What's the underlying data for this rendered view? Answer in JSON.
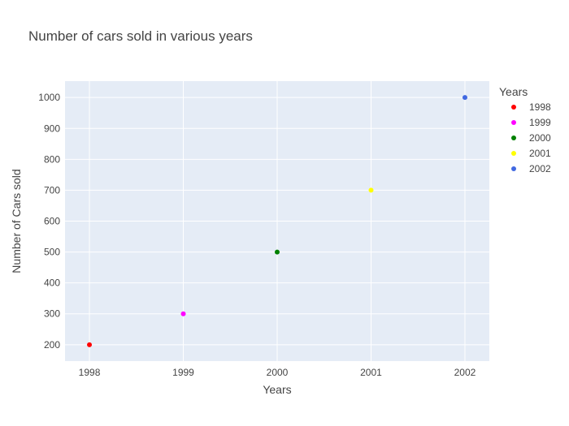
{
  "chart_data": {
    "type": "scatter",
    "title": "Number of cars sold in various years",
    "xlabel": "Years",
    "ylabel": "Number of Cars sold",
    "x_ticks": [
      "1998",
      "1999",
      "2000",
      "2001",
      "2002"
    ],
    "y_ticks": [
      "200",
      "300",
      "400",
      "500",
      "600",
      "700",
      "800",
      "900",
      "1000"
    ],
    "xlim": [
      1997.74,
      2002.26
    ],
    "ylim": [
      147,
      1053
    ],
    "grid": true,
    "legend_title": "Years",
    "legend_position": "top-right",
    "series": [
      {
        "name": "1998",
        "color": "#ff0000",
        "x": [
          1998
        ],
        "y": [
          200
        ]
      },
      {
        "name": "1999",
        "color": "#ff00ff",
        "x": [
          1999
        ],
        "y": [
          300
        ]
      },
      {
        "name": "2000",
        "color": "#008000",
        "x": [
          2000
        ],
        "y": [
          500
        ]
      },
      {
        "name": "2001",
        "color": "#ffff00",
        "x": [
          2001
        ],
        "y": [
          700
        ]
      },
      {
        "name": "2002",
        "color": "#4169e1",
        "x": [
          2002
        ],
        "y": [
          1000
        ]
      }
    ],
    "plot_background": "#e5ecf6"
  }
}
